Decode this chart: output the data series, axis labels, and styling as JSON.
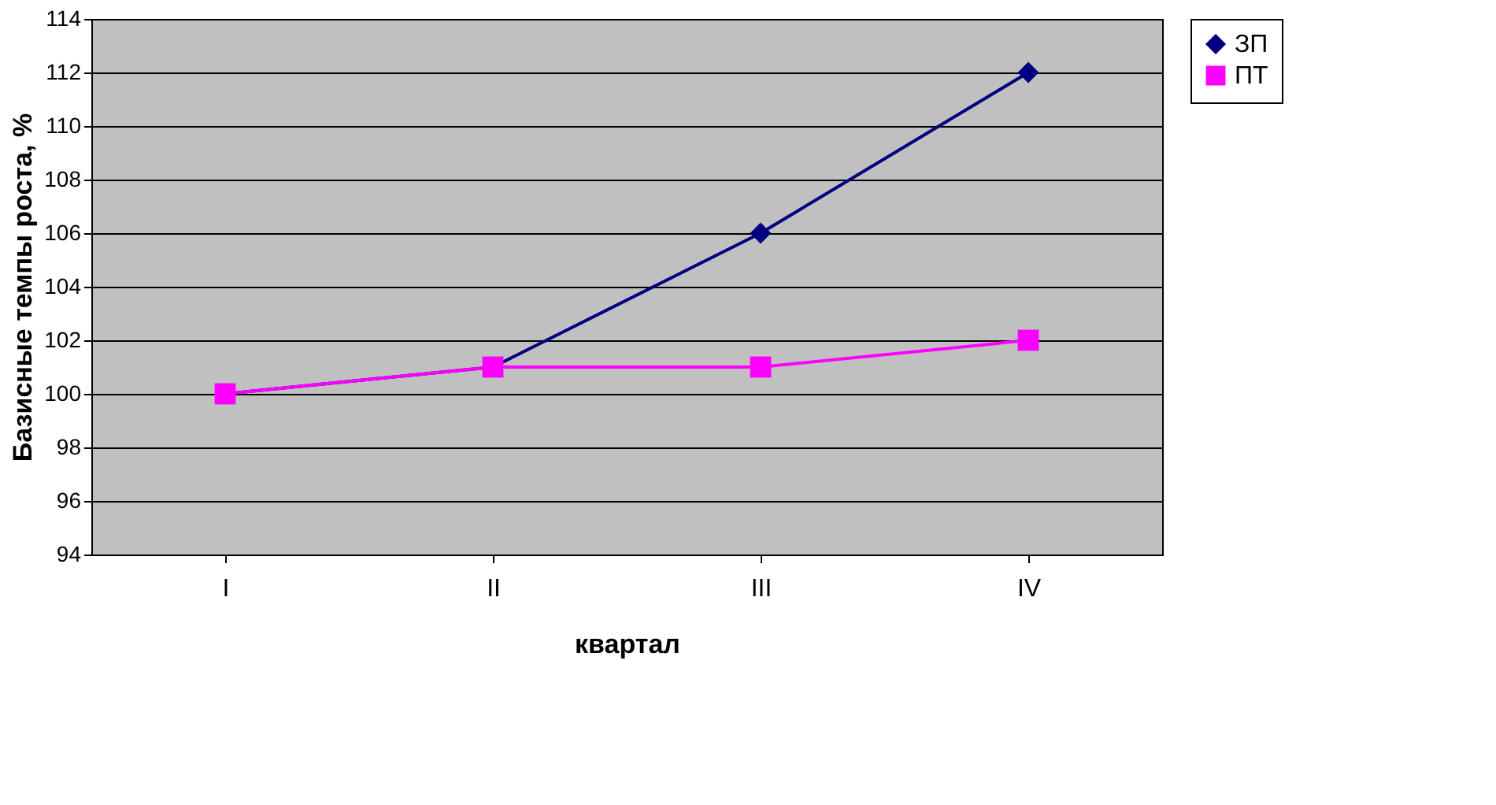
{
  "chart_data": {
    "type": "line",
    "xlabel": "квартал",
    "ylabel": "Базисные темпы роста, %",
    "categories": [
      "I",
      "II",
      "III",
      "IV"
    ],
    "series": [
      {
        "name": "ЗП",
        "color": "#000080",
        "marker": "diamond",
        "values": [
          100,
          101,
          106,
          112
        ]
      },
      {
        "name": "ПТ",
        "color": "#ff00ff",
        "marker": "square",
        "values": [
          100,
          101,
          101,
          102
        ]
      }
    ],
    "ylim": [
      94,
      114
    ],
    "yticks": [
      94,
      96,
      98,
      100,
      102,
      104,
      106,
      108,
      110,
      112,
      114
    ],
    "grid": "y",
    "legend": "right",
    "line_style": "solid"
  }
}
